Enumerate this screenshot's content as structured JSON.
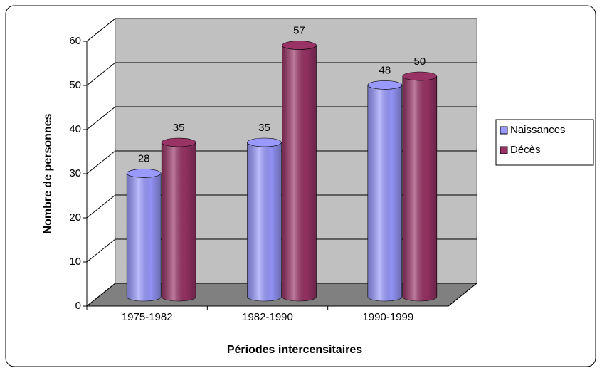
{
  "chart_data": {
    "type": "bar",
    "y_label": "Nombre de personnes",
    "x_label": "Périodes intercensitaires",
    "categories": [
      "1975-1982",
      "1982-1990",
      "1990-1999"
    ],
    "series": [
      {
        "name": "Naissances",
        "color": "#9999ff",
        "values": [
          28,
          35,
          48
        ]
      },
      {
        "name": "Décès",
        "color": "#993366",
        "values": [
          35,
          57,
          50
        ]
      }
    ],
    "ylim": [
      0,
      60
    ],
    "yticks": [
      0,
      10,
      20,
      30,
      40,
      50,
      60
    ],
    "grid": true,
    "legend": "right"
  }
}
